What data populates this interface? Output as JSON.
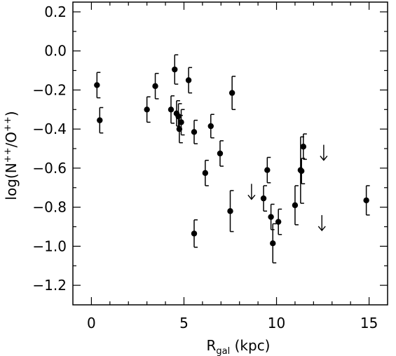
{
  "chart_data": {
    "type": "scatter",
    "title": "",
    "xlabel": {
      "main": "R",
      "sub": "gal",
      "rest": " (kpc)"
    },
    "ylabel": {
      "pre": "log(N",
      "sup1": "++",
      "mid": "/O",
      "sup2": "++",
      "post": ")"
    },
    "xlim": [
      -1.0,
      16.0
    ],
    "ylim": [
      -1.3,
      0.25
    ],
    "x_ticks": [
      0,
      5,
      10,
      15
    ],
    "y_ticks": [
      -1.2,
      -1.0,
      -0.8,
      -0.6,
      -0.4,
      -0.2,
      0.0,
      0.2
    ],
    "x_tick_labels": [
      "0",
      "5",
      "10",
      "15"
    ],
    "y_tick_labels": [
      "−1.2",
      "−1.0",
      "−0.8",
      "−0.6",
      "−0.4",
      "−0.2",
      "0.0",
      "0.2"
    ],
    "grid": false,
    "legend": "none",
    "marker_color": "#000000",
    "points": [
      {
        "x": 0.3,
        "y": -0.175,
        "err": 0.065
      },
      {
        "x": 0.45,
        "y": -0.355,
        "err": 0.065
      },
      {
        "x": 3.0,
        "y": -0.3,
        "err": 0.065
      },
      {
        "x": 3.45,
        "y": -0.18,
        "err": 0.065
      },
      {
        "x": 4.3,
        "y": -0.3,
        "err": 0.07
      },
      {
        "x": 4.5,
        "y": -0.095,
        "err": 0.075
      },
      {
        "x": 4.6,
        "y": -0.32,
        "err": 0.065
      },
      {
        "x": 4.7,
        "y": -0.335,
        "err": 0.065
      },
      {
        "x": 4.75,
        "y": -0.4,
        "err": 0.07
      },
      {
        "x": 4.85,
        "y": -0.365,
        "err": 0.065
      },
      {
        "x": 5.25,
        "y": -0.15,
        "err": 0.065
      },
      {
        "x": 5.55,
        "y": -0.415,
        "err": 0.06
      },
      {
        "x": 5.55,
        "y": -0.935,
        "err": 0.07
      },
      {
        "x": 6.15,
        "y": -0.625,
        "err": 0.065
      },
      {
        "x": 6.45,
        "y": -0.385,
        "err": 0.06
      },
      {
        "x": 6.95,
        "y": -0.525,
        "err": 0.065
      },
      {
        "x": 7.5,
        "y": -0.82,
        "err": 0.105
      },
      {
        "x": 7.6,
        "y": -0.215,
        "err": 0.085
      },
      {
        "x": 9.3,
        "y": -0.755,
        "err": 0.065
      },
      {
        "x": 9.5,
        "y": -0.61,
        "err": 0.065
      },
      {
        "x": 9.7,
        "y": -0.85,
        "err": 0.065
      },
      {
        "x": 9.8,
        "y": -0.985,
        "err": 0.1
      },
      {
        "x": 10.1,
        "y": -0.875,
        "err": 0.065
      },
      {
        "x": 11.0,
        "y": -0.79,
        "err": 0.1
      },
      {
        "x": 11.3,
        "y": -0.61,
        "err": 0.17
      },
      {
        "x": 11.35,
        "y": -0.615,
        "err": 0.065
      },
      {
        "x": 11.45,
        "y": -0.49,
        "err": 0.065
      },
      {
        "x": 14.85,
        "y": -0.765,
        "err": 0.075
      }
    ],
    "upper_limits": [
      {
        "x": 8.65,
        "y": -0.72
      },
      {
        "x": 12.55,
        "y": -0.52
      },
      {
        "x": 12.45,
        "y": -0.88
      }
    ]
  }
}
